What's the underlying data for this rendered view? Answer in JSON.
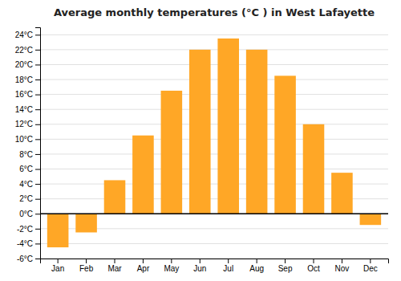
{
  "chart_data": {
    "type": "bar",
    "title": "Average monthly temperatures (°C ) in West Lafayette",
    "categories": [
      "Jan",
      "Feb",
      "Mar",
      "Apr",
      "May",
      "Jun",
      "Jul",
      "Aug",
      "Sep",
      "Oct",
      "Nov",
      "Dec"
    ],
    "values": [
      -4.5,
      -2.5,
      4.5,
      10.5,
      16.5,
      22.0,
      23.5,
      22.0,
      18.5,
      12.0,
      5.5,
      -1.5
    ],
    "color": "#FFA726",
    "ylim": [
      -6,
      25
    ],
    "yticks": [
      {
        "value": -6,
        "label": "-6°C"
      },
      {
        "value": -4,
        "label": "-4°C"
      },
      {
        "value": -2,
        "label": "-2°C"
      },
      {
        "value": 0,
        "label": "0°C"
      },
      {
        "value": 2,
        "label": "2°C"
      },
      {
        "value": 4,
        "label": "4°C"
      },
      {
        "value": 6,
        "label": "6°C"
      },
      {
        "value": 8,
        "label": "8°C"
      },
      {
        "value": 10,
        "label": "10°C"
      },
      {
        "value": 12,
        "label": "12°C"
      },
      {
        "value": 14,
        "label": "14°C"
      },
      {
        "value": 16,
        "label": "16°C"
      },
      {
        "value": 18,
        "label": "18°C"
      },
      {
        "value": 20,
        "label": "20°C"
      },
      {
        "value": 22,
        "label": "22°C"
      },
      {
        "value": 24,
        "label": "24°C"
      }
    ],
    "grid": true
  }
}
